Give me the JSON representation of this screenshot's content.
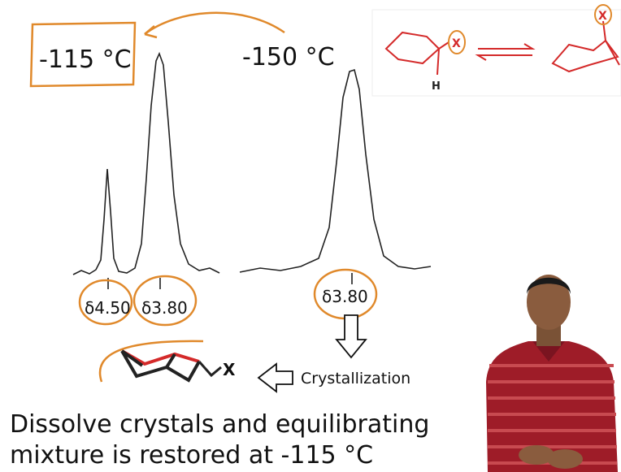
{
  "temperatures": [
    "-115 °C",
    "-150 °C"
  ],
  "peaks": [
    {
      "label": "δ4.50"
    },
    {
      "label": "δ3.80"
    },
    {
      "label": "δ3.80"
    }
  ],
  "process": "Crystallization",
  "molecule_label": "X",
  "inset": {
    "substituent_left": "X",
    "hydrogen": "H",
    "substituent_right": "X"
  },
  "caption": [
    "Dissolve crystals and equilibrating",
    "mixture is restored at -115 °C"
  ]
}
